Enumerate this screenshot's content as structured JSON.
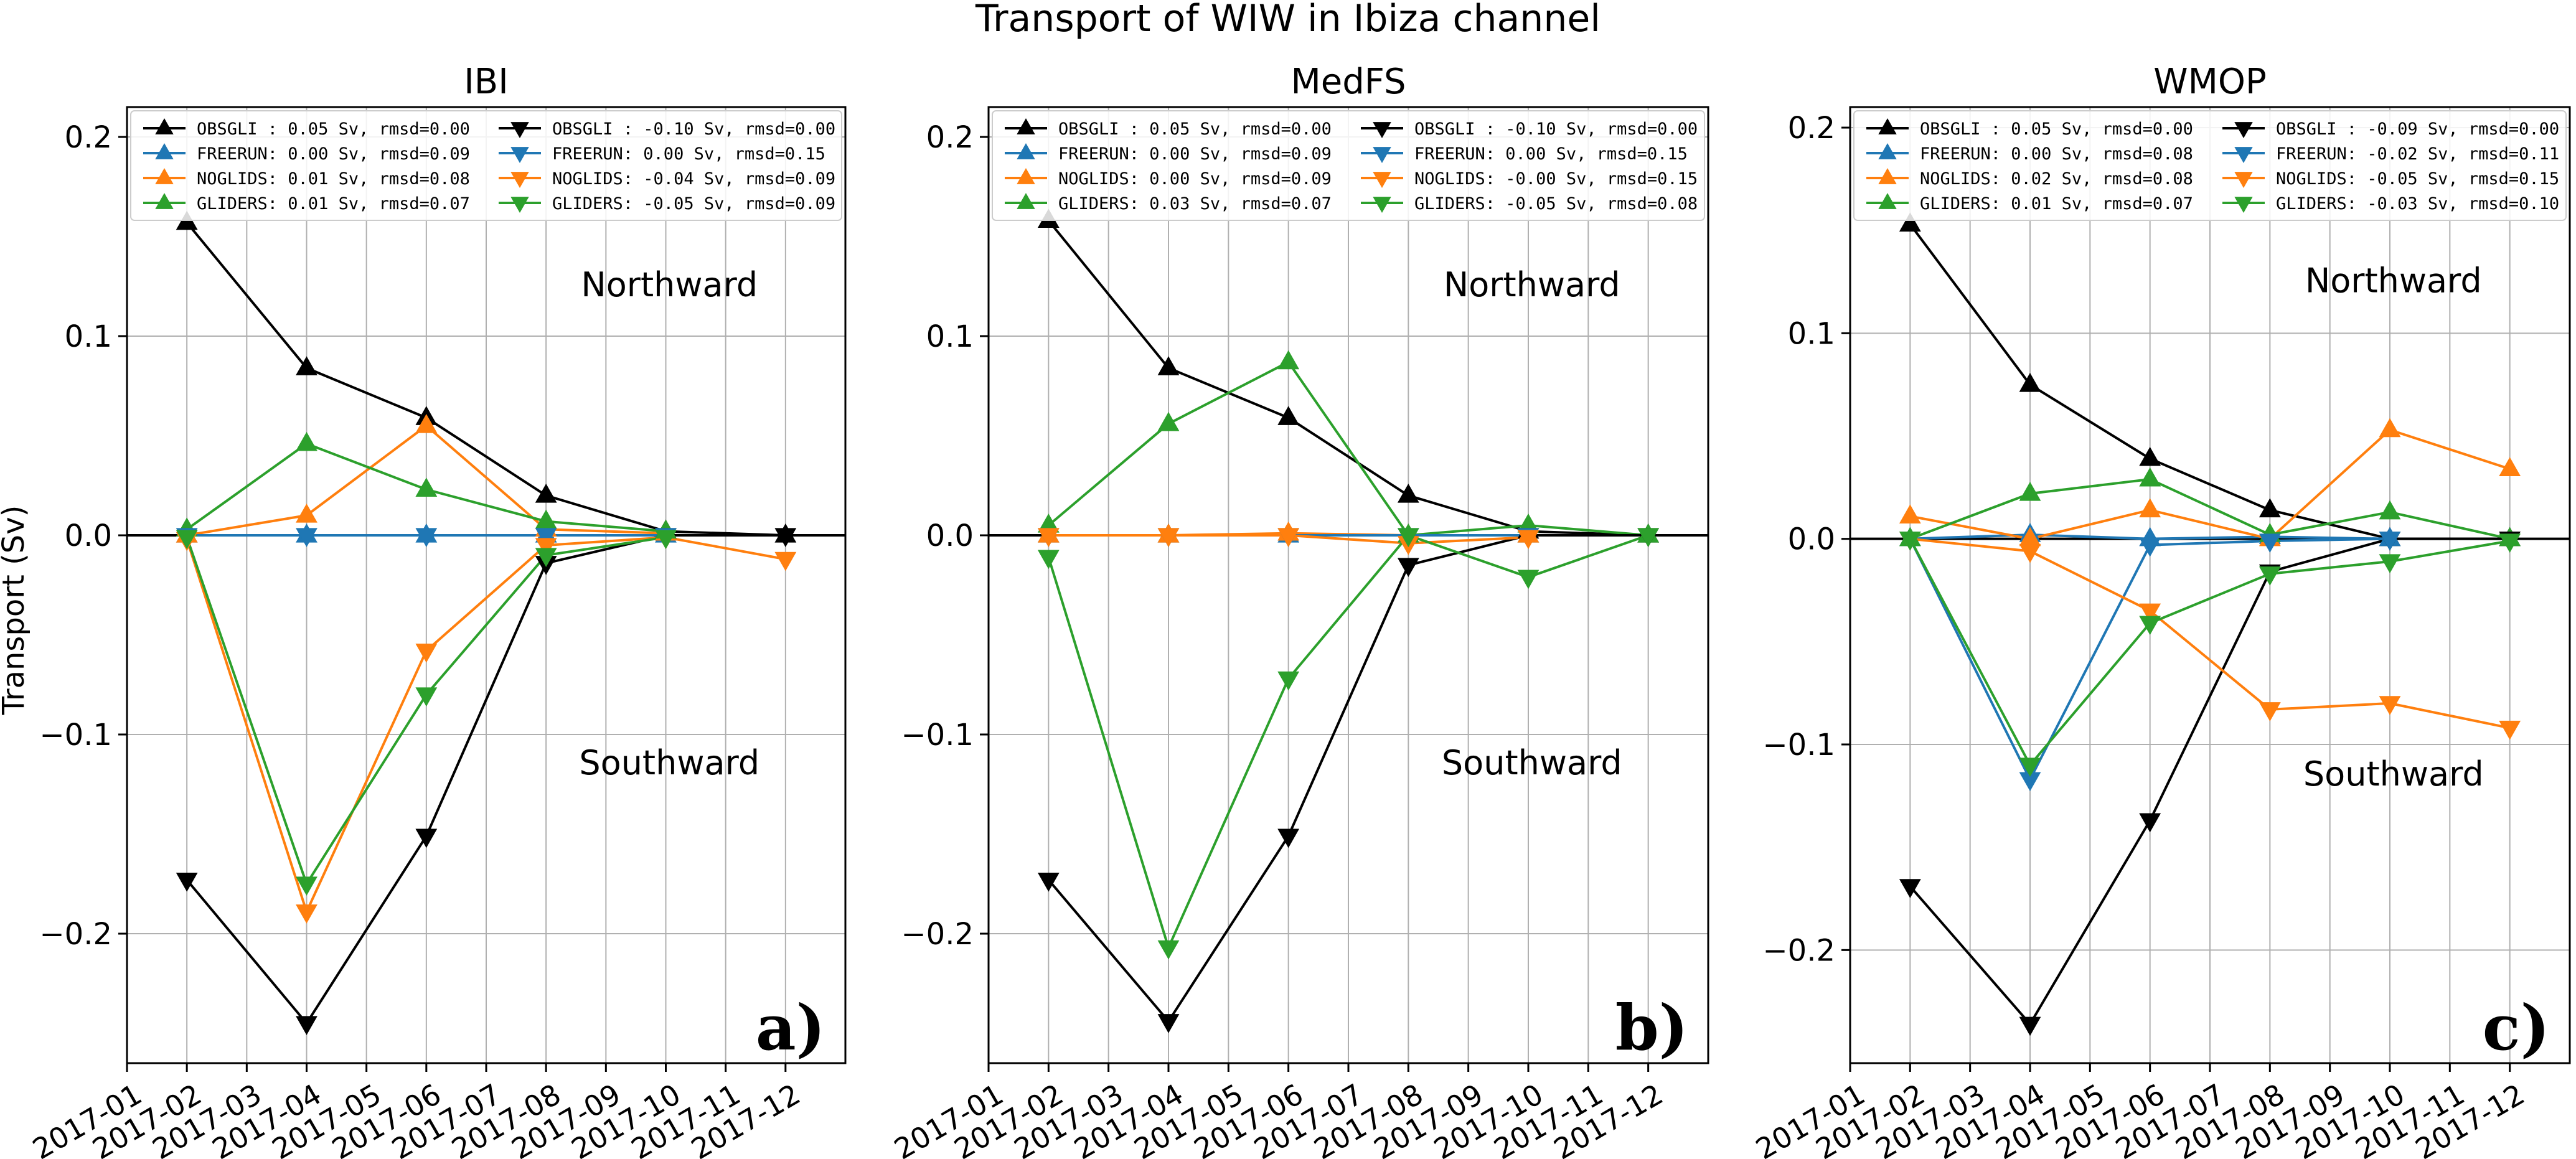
{
  "suptitle": "Transport of WIW in Ibiza channel",
  "ylabel": "Transport (Sv)",
  "northward_label": "Northward",
  "southward_label": "Southward",
  "colors": {
    "OBSGLI": "#000000",
    "FREERUN": "#1f77b4",
    "NOGLIDS": "#ff7f0e",
    "GLIDERS": "#2ca02c"
  },
  "chart_data": [
    {
      "type": "line",
      "title": "IBI",
      "panel_label": "a)",
      "xlabel": "",
      "ylabel": "Transport (Sv)",
      "ylim": [
        -0.265,
        0.215
      ],
      "yticks": [
        -0.2,
        -0.1,
        0.0,
        0.1,
        0.2
      ],
      "ytick_labels": [
        "−0.2",
        "−0.1",
        "0.0",
        "0.1",
        "0.2"
      ],
      "xlim": [
        0,
        12
      ],
      "xticks": [
        0,
        1,
        2,
        3,
        4,
        5,
        6,
        7,
        8,
        9,
        10,
        11
      ],
      "xtick_labels": [
        "2017-01",
        "2017-02",
        "2017-03",
        "2017-04",
        "2017-05",
        "2017-06",
        "2017-07",
        "2017-08",
        "2017-09",
        "2017-10",
        "2017-11",
        "2017-12"
      ],
      "grid": true,
      "legend_position": "top",
      "northward_y": 0.12,
      "southward_y": -0.12,
      "series": [
        {
          "name": "OBSGLI",
          "direction": "north",
          "legend": "OBSGLI :  0.05 Sv, rmsd=0.00",
          "x": [
            1,
            3,
            5,
            7,
            9,
            11
          ],
          "values": [
            0.157,
            0.084,
            0.059,
            0.02,
            0.002,
            0.0
          ]
        },
        {
          "name": "FREERUN",
          "direction": "north",
          "legend": "FREERUN:  0.00 Sv, rmsd=0.09",
          "x": [
            1,
            3,
            5,
            7,
            9
          ],
          "values": [
            0.0,
            0.0,
            0.0,
            0.0,
            0.0
          ]
        },
        {
          "name": "NOGLIDS",
          "direction": "north",
          "legend": "NOGLIDS:  0.01 Sv, rmsd=0.08",
          "x": [
            1,
            3,
            5,
            7,
            9
          ],
          "values": [
            0.0,
            0.01,
            0.055,
            0.003,
            0.001
          ]
        },
        {
          "name": "GLIDERS",
          "direction": "north",
          "legend": "GLIDERS:  0.01 Sv, rmsd=0.07",
          "x": [
            1,
            3,
            5,
            7,
            9
          ],
          "values": [
            0.003,
            0.046,
            0.023,
            0.007,
            0.002
          ]
        },
        {
          "name": "OBSGLI",
          "direction": "south",
          "legend": "OBSGLI : -0.10 Sv, rmsd=0.00",
          "x": [
            1,
            3,
            5,
            7,
            9,
            11
          ],
          "values": [
            -0.173,
            -0.245,
            -0.151,
            -0.014,
            0.0,
            0.0
          ]
        },
        {
          "name": "FREERUN",
          "direction": "south",
          "legend": "FREERUN:  0.00 Sv, rmsd=0.15",
          "x": [
            1,
            3,
            5,
            7,
            9
          ],
          "values": [
            0.0,
            0.0,
            0.0,
            0.0,
            0.0
          ]
        },
        {
          "name": "NOGLIDS",
          "direction": "south",
          "legend": "NOGLIDS: -0.04 Sv, rmsd=0.09",
          "x": [
            1,
            3,
            5,
            7,
            9,
            11
          ],
          "values": [
            -0.002,
            -0.189,
            -0.058,
            -0.005,
            -0.001,
            -0.012
          ]
        },
        {
          "name": "GLIDERS",
          "direction": "south",
          "legend": "GLIDERS: -0.05 Sv, rmsd=0.09",
          "x": [
            1,
            3,
            5,
            7,
            9
          ],
          "values": [
            -0.001,
            -0.175,
            -0.08,
            -0.01,
            -0.001
          ]
        }
      ]
    },
    {
      "type": "line",
      "title": "MedFS",
      "panel_label": "b)",
      "xlabel": "",
      "ylabel": "",
      "ylim": [
        -0.265,
        0.215
      ],
      "yticks": [
        -0.2,
        -0.1,
        0.0,
        0.1,
        0.2
      ],
      "ytick_labels": [
        "−0.2",
        "−0.1",
        "0.0",
        "0.1",
        "0.2"
      ],
      "xlim": [
        0,
        12
      ],
      "xticks": [
        0,
        1,
        2,
        3,
        4,
        5,
        6,
        7,
        8,
        9,
        10,
        11
      ],
      "xtick_labels": [
        "2017-01",
        "2017-02",
        "2017-03",
        "2017-04",
        "2017-05",
        "2017-06",
        "2017-07",
        "2017-08",
        "2017-09",
        "2017-10",
        "2017-11",
        "2017-12"
      ],
      "grid": true,
      "legend_position": "top",
      "northward_y": 0.12,
      "southward_y": -0.12,
      "series": [
        {
          "name": "OBSGLI",
          "direction": "north",
          "legend": "OBSGLI :  0.05 Sv, rmsd=0.00",
          "x": [
            1,
            3,
            5,
            7,
            9,
            11
          ],
          "values": [
            0.158,
            0.084,
            0.059,
            0.02,
            0.002,
            0.0
          ]
        },
        {
          "name": "FREERUN",
          "direction": "north",
          "legend": "FREERUN:  0.00 Sv, rmsd=0.09",
          "x": [
            1,
            3,
            5,
            7,
            9
          ],
          "values": [
            0.0,
            0.0,
            0.0,
            0.0,
            0.0
          ]
        },
        {
          "name": "NOGLIDS",
          "direction": "north",
          "legend": "NOGLIDS:  0.00 Sv, rmsd=0.09",
          "x": [
            1,
            3,
            5,
            7,
            9
          ],
          "values": [
            0.0,
            0.0,
            0.001,
            0.0,
            0.0
          ]
        },
        {
          "name": "GLIDERS",
          "direction": "north",
          "legend": "GLIDERS:  0.03 Sv, rmsd=0.07",
          "x": [
            1,
            3,
            5,
            7,
            9,
            11
          ],
          "values": [
            0.005,
            0.056,
            0.087,
            0.0,
            0.005,
            0.0
          ]
        },
        {
          "name": "OBSGLI",
          "direction": "south",
          "legend": "OBSGLI : -0.10 Sv, rmsd=0.00",
          "x": [
            1,
            3,
            5,
            7,
            9,
            11
          ],
          "values": [
            -0.173,
            -0.244,
            -0.151,
            -0.015,
            0.0,
            0.0
          ]
        },
        {
          "name": "FREERUN",
          "direction": "south",
          "legend": "FREERUN:  0.00 Sv, rmsd=0.15",
          "x": [
            1,
            3,
            5,
            7,
            9
          ],
          "values": [
            0.0,
            0.0,
            0.0,
            0.0,
            0.0
          ]
        },
        {
          "name": "NOGLIDS",
          "direction": "south",
          "legend": "NOGLIDS: -0.00 Sv, rmsd=0.15",
          "x": [
            1,
            3,
            5,
            7,
            9
          ],
          "values": [
            0.0,
            0.0,
            0.0,
            -0.004,
            -0.001
          ]
        },
        {
          "name": "GLIDERS",
          "direction": "south",
          "legend": "GLIDERS: -0.05 Sv, rmsd=0.08",
          "x": [
            1,
            3,
            5,
            7,
            9,
            11
          ],
          "values": [
            -0.011,
            -0.207,
            -0.072,
            0.0,
            -0.021,
            0.0
          ]
        }
      ]
    },
    {
      "type": "line",
      "title": "WMOP",
      "panel_label": "c)",
      "xlabel": "",
      "ylabel": "",
      "ylim": [
        -0.255,
        0.21
      ],
      "yticks": [
        -0.2,
        -0.1,
        0.0,
        0.1,
        0.2
      ],
      "ytick_labels": [
        "−0.2",
        "−0.1",
        "0.0",
        "0.1",
        "0.2"
      ],
      "xlim": [
        0,
        12
      ],
      "xticks": [
        0,
        1,
        2,
        3,
        4,
        5,
        6,
        7,
        8,
        9,
        10,
        11
      ],
      "xtick_labels": [
        "2017-01",
        "2017-02",
        "2017-03",
        "2017-04",
        "2017-05",
        "2017-06",
        "2017-07",
        "2017-08",
        "2017-09",
        "2017-10",
        "2017-11",
        "2017-12"
      ],
      "grid": true,
      "legend_position": "top",
      "northward_y": 0.12,
      "southward_y": -0.12,
      "series": [
        {
          "name": "OBSGLI",
          "direction": "north",
          "legend": "OBSGLI :  0.05 Sv, rmsd=0.00",
          "x": [
            1,
            3,
            5,
            7,
            9,
            11
          ],
          "values": [
            0.153,
            0.075,
            0.039,
            0.014,
            0.0,
            0.0
          ]
        },
        {
          "name": "FREERUN",
          "direction": "north",
          "legend": "FREERUN:  0.00 Sv, rmsd=0.08",
          "x": [
            1,
            3,
            5,
            7,
            9
          ],
          "values": [
            0.0,
            0.002,
            0.0,
            0.001,
            0.0
          ]
        },
        {
          "name": "NOGLIDS",
          "direction": "north",
          "legend": "NOGLIDS:  0.02 Sv, rmsd=0.08",
          "x": [
            1,
            3,
            5,
            7,
            9,
            11
          ],
          "values": [
            0.011,
            0.0,
            0.014,
            0.0,
            0.053,
            0.034
          ]
        },
        {
          "name": "GLIDERS",
          "direction": "north",
          "legend": "GLIDERS:  0.01 Sv, rmsd=0.07",
          "x": [
            1,
            3,
            5,
            7,
            9,
            11
          ],
          "values": [
            0.0,
            0.022,
            0.029,
            0.002,
            0.013,
            0.0
          ]
        },
        {
          "name": "OBSGLI",
          "direction": "south",
          "legend": "OBSGLI : -0.09 Sv, rmsd=0.00",
          "x": [
            1,
            3,
            5,
            7,
            9,
            11
          ],
          "values": [
            -0.169,
            -0.236,
            -0.137,
            -0.016,
            0.0,
            0.0
          ]
        },
        {
          "name": "FREERUN",
          "direction": "south",
          "legend": "FREERUN: -0.02 Sv, rmsd=0.11",
          "x": [
            1,
            3,
            5,
            7,
            9
          ],
          "values": [
            0.0,
            -0.117,
            -0.003,
            -0.001,
            0.0
          ]
        },
        {
          "name": "NOGLIDS",
          "direction": "south",
          "legend": "NOGLIDS: -0.05 Sv, rmsd=0.15",
          "x": [
            1,
            3,
            5,
            7,
            9,
            11
          ],
          "values": [
            0.0,
            -0.006,
            -0.035,
            -0.083,
            -0.08,
            -0.092
          ]
        },
        {
          "name": "GLIDERS",
          "direction": "south",
          "legend": "GLIDERS: -0.03 Sv, rmsd=0.10",
          "x": [
            1,
            3,
            5,
            7,
            9,
            11
          ],
          "values": [
            0.0,
            -0.11,
            -0.041,
            -0.017,
            -0.011,
            -0.001
          ]
        }
      ]
    }
  ]
}
